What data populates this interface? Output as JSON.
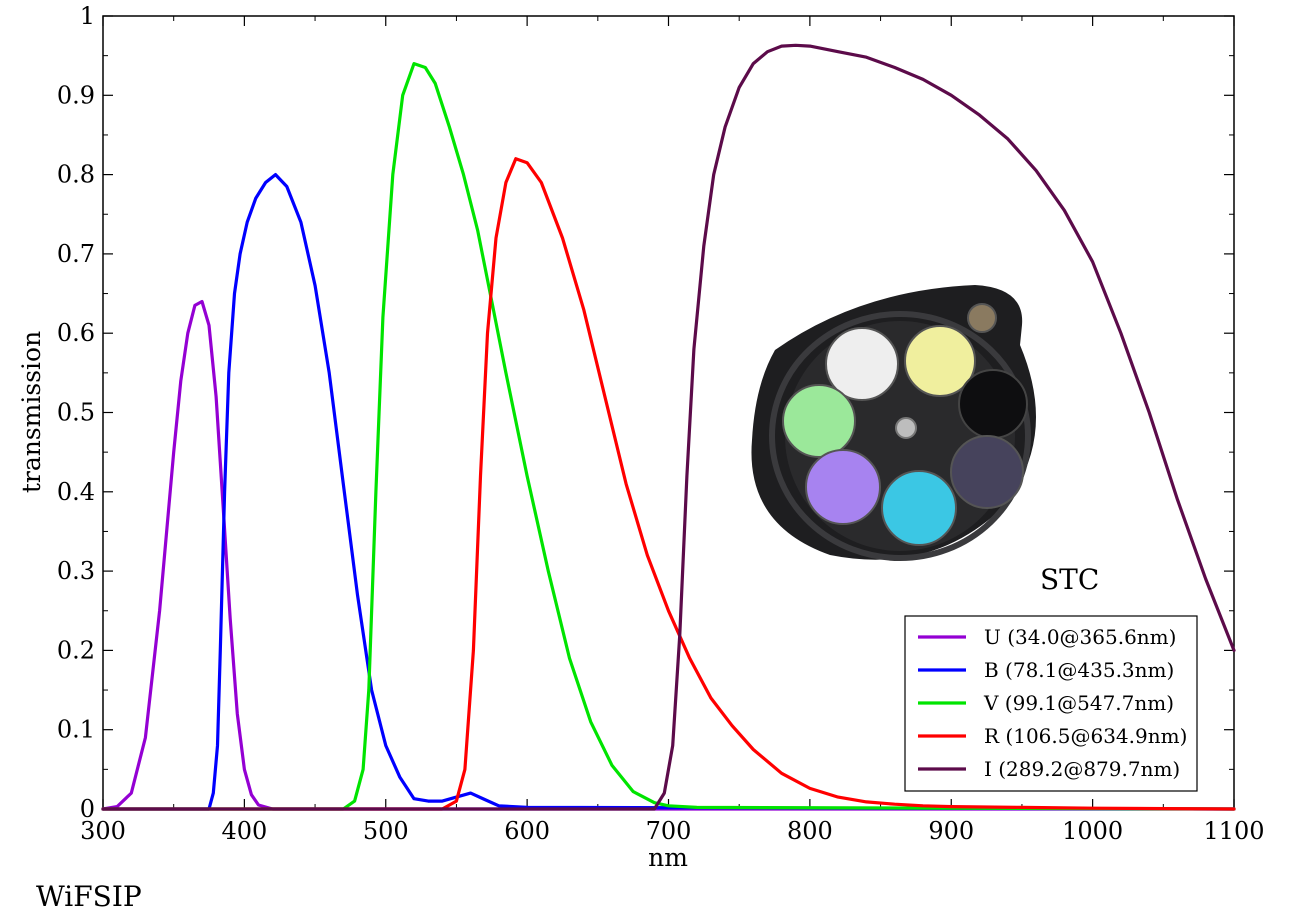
{
  "chart_data": {
    "type": "line",
    "xlabel": "nm",
    "ylabel": "transmission",
    "xlim": [
      300,
      1100
    ],
    "ylim": [
      0,
      1
    ],
    "xticks": [
      300,
      400,
      500,
      600,
      700,
      800,
      900,
      1000,
      1100
    ],
    "yticks": [
      "0",
      "0.1",
      "0.2",
      "0.3",
      "0.4",
      "0.5",
      "0.6",
      "0.7",
      "0.8",
      "0.9",
      "1"
    ],
    "grid": false,
    "legend_position": "bottom-right",
    "annotations": {
      "instrument_inset": "STC",
      "camera": "WiFSIP"
    },
    "series": [
      {
        "name": "U (34.0@365.6nm)",
        "color": "#9400d3",
        "x": [
          300,
          310,
          320,
          330,
          340,
          350,
          355,
          360,
          365,
          370,
          375,
          380,
          385,
          390,
          395,
          400,
          405,
          410,
          420,
          1100
        ],
        "y": [
          0,
          0.003,
          0.02,
          0.09,
          0.25,
          0.45,
          0.54,
          0.6,
          0.635,
          0.64,
          0.61,
          0.52,
          0.38,
          0.24,
          0.12,
          0.05,
          0.018,
          0.005,
          0,
          0
        ]
      },
      {
        "name": "B (78.1@435.3nm)",
        "color": "#0000ff",
        "x": [
          300,
          375,
          378,
          381,
          383,
          386,
          389,
          393,
          397,
          402,
          408,
          415,
          422,
          430,
          440,
          450,
          460,
          470,
          480,
          490,
          500,
          510,
          520,
          530,
          540,
          550,
          560,
          570,
          580,
          600,
          1100
        ],
        "y": [
          0,
          0,
          0.02,
          0.08,
          0.2,
          0.4,
          0.55,
          0.65,
          0.7,
          0.74,
          0.77,
          0.79,
          0.8,
          0.785,
          0.74,
          0.66,
          0.55,
          0.41,
          0.27,
          0.15,
          0.08,
          0.04,
          0.013,
          0.01,
          0.01,
          0.015,
          0.02,
          0.012,
          0.004,
          0.002,
          0
        ]
      },
      {
        "name": "V (99.1@547.7nm)",
        "color": "#00e400",
        "x": [
          300,
          470,
          478,
          484,
          488,
          493,
          498,
          505,
          512,
          520,
          528,
          535,
          545,
          555,
          565,
          575,
          585,
          600,
          615,
          630,
          645,
          660,
          675,
          690,
          700,
          720,
          1100
        ],
        "y": [
          0,
          0,
          0.01,
          0.05,
          0.15,
          0.4,
          0.62,
          0.8,
          0.9,
          0.94,
          0.935,
          0.915,
          0.86,
          0.8,
          0.73,
          0.64,
          0.55,
          0.42,
          0.3,
          0.19,
          0.11,
          0.055,
          0.022,
          0.008,
          0.004,
          0.002,
          0
        ]
      },
      {
        "name": "R (106.5@634.9nm)",
        "color": "#ff0000",
        "x": [
          300,
          540,
          550,
          556,
          562,
          567,
          572,
          578,
          585,
          592,
          600,
          610,
          625,
          640,
          655,
          670,
          685,
          700,
          715,
          730,
          745,
          760,
          780,
          800,
          820,
          840,
          860,
          880,
          900,
          950,
          1000,
          1100
        ],
        "y": [
          0,
          0,
          0.01,
          0.05,
          0.2,
          0.42,
          0.6,
          0.72,
          0.79,
          0.82,
          0.815,
          0.79,
          0.72,
          0.63,
          0.52,
          0.41,
          0.32,
          0.25,
          0.19,
          0.14,
          0.105,
          0.075,
          0.045,
          0.026,
          0.015,
          0.009,
          0.006,
          0.004,
          0.003,
          0.002,
          0.001,
          0
        ]
      },
      {
        "name": "I (289.2@879.7nm)",
        "color": "#5c0b4a",
        "x": [
          300,
          690,
          697,
          703,
          708,
          713,
          718,
          725,
          732,
          740,
          750,
          760,
          770,
          780,
          790,
          800,
          820,
          840,
          860,
          880,
          900,
          920,
          940,
          960,
          980,
          1000,
          1020,
          1040,
          1060,
          1080,
          1100
        ],
        "y": [
          0,
          0,
          0.02,
          0.08,
          0.22,
          0.42,
          0.58,
          0.71,
          0.8,
          0.86,
          0.91,
          0.94,
          0.955,
          0.962,
          0.963,
          0.962,
          0.955,
          0.948,
          0.935,
          0.92,
          0.9,
          0.875,
          0.845,
          0.805,
          0.755,
          0.69,
          0.6,
          0.5,
          0.39,
          0.29,
          0.2
        ]
      }
    ]
  }
}
